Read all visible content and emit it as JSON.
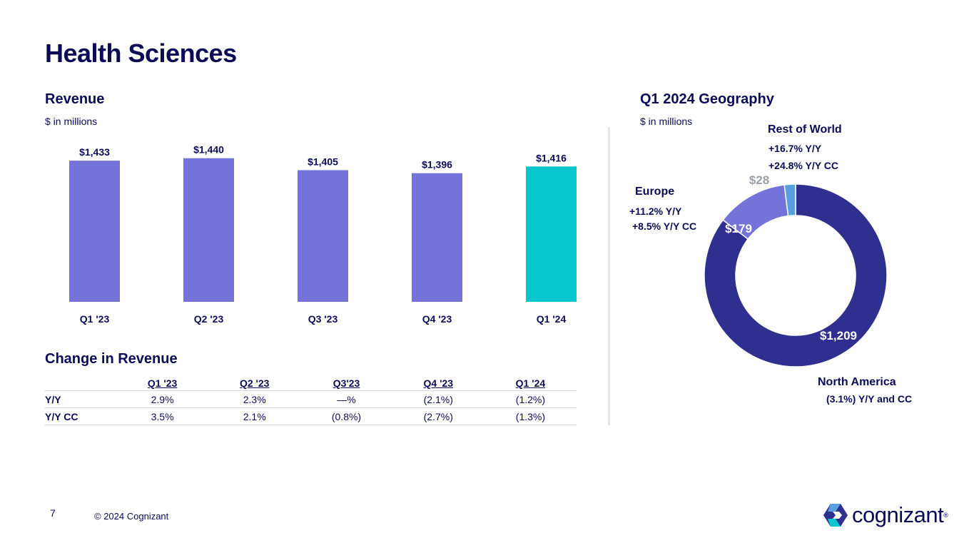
{
  "page": {
    "title": "Health Sciences",
    "page_number": "7",
    "copyright": "© 2024 Cognizant",
    "logo_text": "cognizant",
    "logo_mark": "®"
  },
  "revenue": {
    "heading": "Revenue",
    "unit": "$ in millions"
  },
  "change": {
    "heading": "Change in Revenue",
    "columns": [
      "Q1 '23",
      "Q2 '23",
      "Q3'23",
      "Q4 '23",
      "Q1 '24"
    ],
    "rows": [
      {
        "label": "Y/Y",
        "cells": [
          "2.9%",
          "2.3%",
          "—%",
          "(2.1%)",
          "(1.2%)"
        ]
      },
      {
        "label": "Y/Y CC",
        "cells": [
          "3.5%",
          "2.1%",
          "(0.8%)",
          "(2.7%)",
          "(1.3%)"
        ]
      }
    ]
  },
  "geography": {
    "heading": "Q1 2024 Geography",
    "unit": "$ in millions",
    "rest_of_world": {
      "name": "Rest of World",
      "yy": "+16.7%  Y/Y",
      "yycc": "+24.8% Y/Y CC"
    },
    "europe": {
      "name": "Europe",
      "yy": "+11.2%  Y/Y",
      "yycc": "+8.5%  Y/Y CC"
    },
    "north_america": {
      "name": "North America",
      "stat": "(3.1%) Y/Y and CC"
    }
  },
  "chart_data": [
    {
      "type": "bar",
      "title": "Revenue",
      "ylabel": "$ in millions",
      "categories": [
        "Q1 '23",
        "Q2 '23",
        "Q3 '23",
        "Q4 '23",
        "Q1 '24"
      ],
      "values": [
        1433,
        1440,
        1405,
        1396,
        1416
      ],
      "labels": [
        "$1,433",
        "$1,440",
        "$1,405",
        "$1,396",
        "$1,416"
      ],
      "colors": [
        "#7373d8",
        "#7373d8",
        "#7373d8",
        "#7373d8",
        "#06c7cc"
      ]
    },
    {
      "type": "pie",
      "title": "Q1 2024 Geography",
      "categories": [
        "North America",
        "Europe",
        "Rest of World"
      ],
      "values": [
        1209,
        179,
        28
      ],
      "labels": [
        "$1,209",
        "$179",
        "$28"
      ],
      "colors": [
        "#2f2f8f",
        "#7373d8",
        "#5aa0e0"
      ],
      "label_colors": [
        "#ffffff",
        "#ffffff",
        "#9aa0a8"
      ]
    }
  ]
}
